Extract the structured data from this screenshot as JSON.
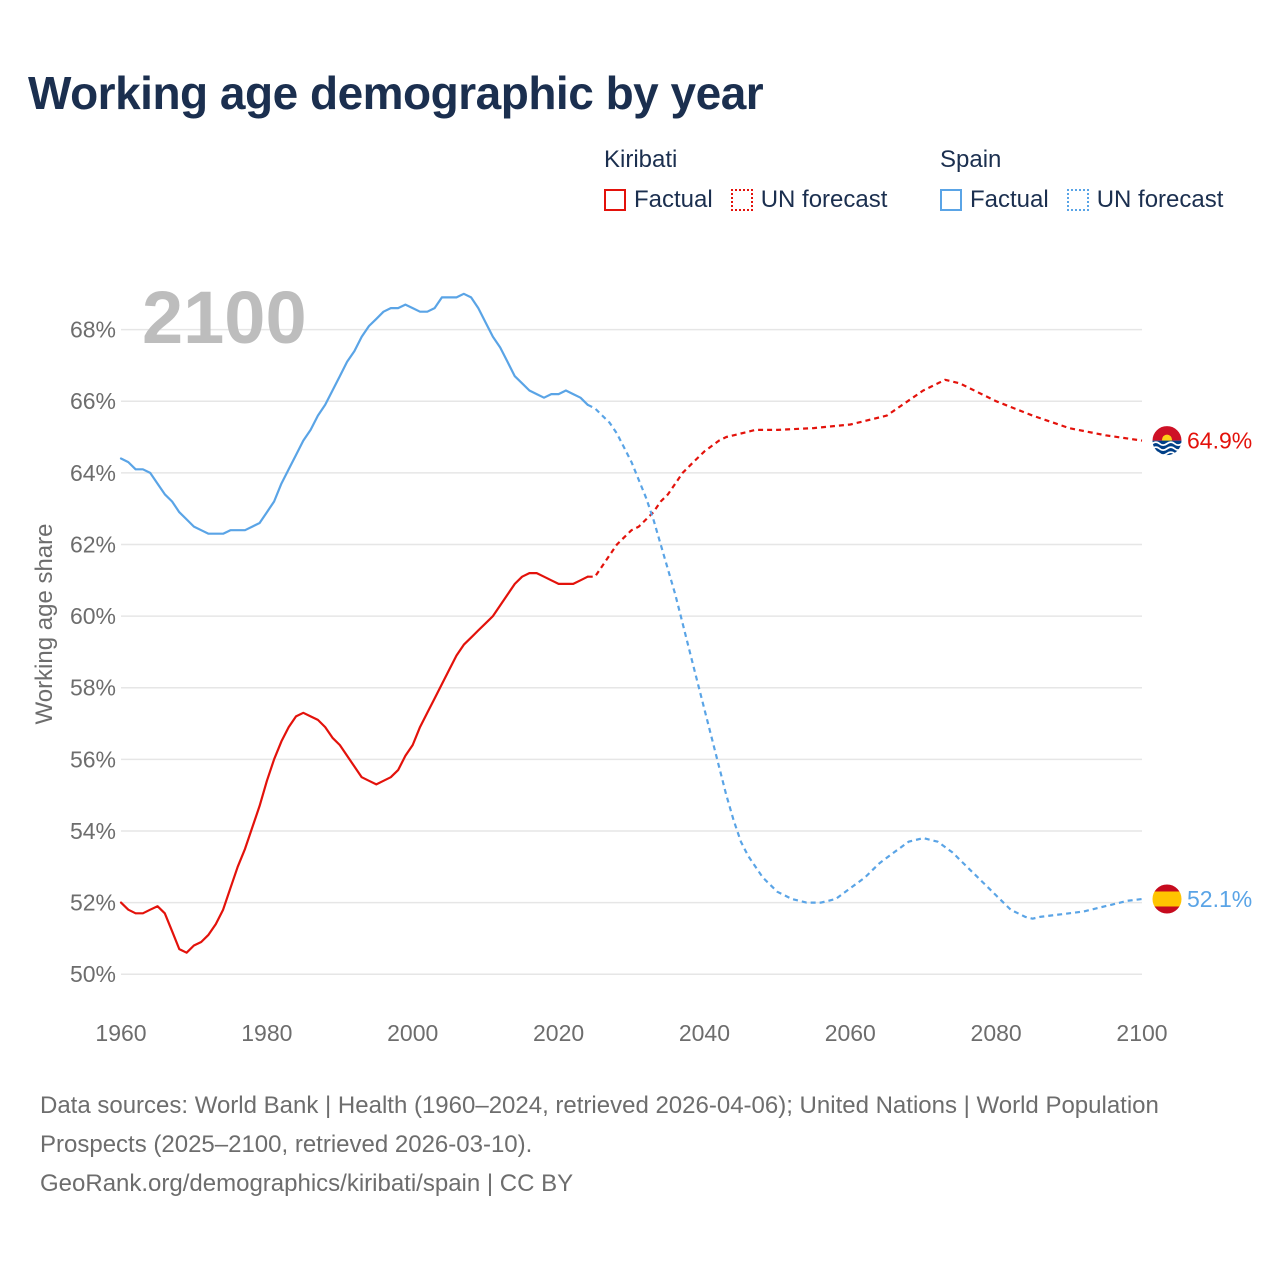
{
  "title": "Working age demographic by year",
  "legend": {
    "groups": [
      {
        "name": "Kiribati",
        "color": "#e3120b",
        "items": [
          {
            "label": "Factual",
            "style": "solid"
          },
          {
            "label": "UN forecast",
            "style": "dotted"
          }
        ]
      },
      {
        "name": "Spain",
        "color": "#5aa4e6",
        "items": [
          {
            "label": "Factual",
            "style": "solid"
          },
          {
            "label": "UN forecast",
            "style": "dotted"
          }
        ]
      }
    ]
  },
  "footer": {
    "sources": "Data sources: World Bank | Health (1960–2024, retrieved 2026-04-06); United Nations | World Population Prospects (2025–2100, retrieved 2026-03-10).",
    "url": "GeoRank.org/demographics/kiribati/spain | CC BY"
  },
  "chart_data": {
    "type": "line",
    "year_label": "2100",
    "ylabel": "Working age share",
    "xlim": [
      1960,
      2100
    ],
    "ylim": [
      49,
      70
    ],
    "y_ticks": [
      50,
      52,
      54,
      56,
      58,
      60,
      62,
      64,
      66,
      68
    ],
    "y_tick_labels": [
      "50%",
      "52%",
      "54%",
      "56%",
      "58%",
      "60%",
      "62%",
      "64%",
      "66%",
      "68%"
    ],
    "x_ticks": [
      1960,
      1980,
      2000,
      2020,
      2040,
      2060,
      2080,
      2100
    ],
    "x_tick_labels": [
      "1960",
      "1980",
      "2000",
      "2020",
      "2040",
      "2060",
      "2080",
      "2100"
    ],
    "grid": "horizontal",
    "forecast_start_year": 2024,
    "series": [
      {
        "name": "Kiribati",
        "color": "#e3120b",
        "flag": "kiribati-flag",
        "end_label": "64.9%",
        "points": [
          [
            1960,
            52.0
          ],
          [
            1961,
            51.8
          ],
          [
            1962,
            51.7
          ],
          [
            1963,
            51.7
          ],
          [
            1964,
            51.8
          ],
          [
            1965,
            51.9
          ],
          [
            1966,
            51.7
          ],
          [
            1967,
            51.2
          ],
          [
            1968,
            50.7
          ],
          [
            1969,
            50.6
          ],
          [
            1970,
            50.8
          ],
          [
            1971,
            50.9
          ],
          [
            1972,
            51.1
          ],
          [
            1973,
            51.4
          ],
          [
            1974,
            51.8
          ],
          [
            1975,
            52.4
          ],
          [
            1976,
            53.0
          ],
          [
            1977,
            53.5
          ],
          [
            1978,
            54.1
          ],
          [
            1979,
            54.7
          ],
          [
            1980,
            55.4
          ],
          [
            1981,
            56.0
          ],
          [
            1982,
            56.5
          ],
          [
            1983,
            56.9
          ],
          [
            1984,
            57.2
          ],
          [
            1985,
            57.3
          ],
          [
            1986,
            57.2
          ],
          [
            1987,
            57.1
          ],
          [
            1988,
            56.9
          ],
          [
            1989,
            56.6
          ],
          [
            1990,
            56.4
          ],
          [
            1991,
            56.1
          ],
          [
            1992,
            55.8
          ],
          [
            1993,
            55.5
          ],
          [
            1994,
            55.4
          ],
          [
            1995,
            55.3
          ],
          [
            1996,
            55.4
          ],
          [
            1997,
            55.5
          ],
          [
            1998,
            55.7
          ],
          [
            1999,
            56.1
          ],
          [
            2000,
            56.4
          ],
          [
            2001,
            56.9
          ],
          [
            2002,
            57.3
          ],
          [
            2003,
            57.7
          ],
          [
            2004,
            58.1
          ],
          [
            2005,
            58.5
          ],
          [
            2006,
            58.9
          ],
          [
            2007,
            59.2
          ],
          [
            2008,
            59.4
          ],
          [
            2009,
            59.6
          ],
          [
            2010,
            59.8
          ],
          [
            2011,
            60.0
          ],
          [
            2012,
            60.3
          ],
          [
            2013,
            60.6
          ],
          [
            2014,
            60.9
          ],
          [
            2015,
            61.1
          ],
          [
            2016,
            61.2
          ],
          [
            2017,
            61.2
          ],
          [
            2018,
            61.1
          ],
          [
            2019,
            61.0
          ],
          [
            2020,
            60.9
          ],
          [
            2021,
            60.9
          ],
          [
            2022,
            60.9
          ],
          [
            2023,
            61.0
          ],
          [
            2024,
            61.1
          ],
          [
            2025,
            61.1
          ],
          [
            2026,
            61.4
          ],
          [
            2027,
            61.7
          ],
          [
            2028,
            62.0
          ],
          [
            2029,
            62.2
          ],
          [
            2030,
            62.4
          ],
          [
            2031,
            62.5
          ],
          [
            2032,
            62.7
          ],
          [
            2033,
            62.9
          ],
          [
            2034,
            63.2
          ],
          [
            2035,
            63.4
          ],
          [
            2036,
            63.7
          ],
          [
            2037,
            64.0
          ],
          [
            2038,
            64.2
          ],
          [
            2039,
            64.4
          ],
          [
            2040,
            64.6
          ],
          [
            2041,
            64.75
          ],
          [
            2042,
            64.9
          ],
          [
            2043,
            65.0
          ],
          [
            2044,
            65.05
          ],
          [
            2045,
            65.1
          ],
          [
            2046,
            65.15
          ],
          [
            2047,
            65.2
          ],
          [
            2048,
            65.2
          ],
          [
            2050,
            65.2
          ],
          [
            2055,
            65.25
          ],
          [
            2060,
            65.35
          ],
          [
            2065,
            65.6
          ],
          [
            2070,
            66.3
          ],
          [
            2073,
            66.6
          ],
          [
            2075,
            66.5
          ],
          [
            2078,
            66.2
          ],
          [
            2080,
            66.0
          ],
          [
            2085,
            65.6
          ],
          [
            2090,
            65.25
          ],
          [
            2095,
            65.05
          ],
          [
            2100,
            64.9
          ]
        ]
      },
      {
        "name": "Spain",
        "color": "#5aa4e6",
        "flag": "spain-flag",
        "end_label": "52.1%",
        "points": [
          [
            1960,
            64.4
          ],
          [
            1961,
            64.3
          ],
          [
            1962,
            64.1
          ],
          [
            1963,
            64.1
          ],
          [
            1964,
            64.0
          ],
          [
            1965,
            63.7
          ],
          [
            1966,
            63.4
          ],
          [
            1967,
            63.2
          ],
          [
            1968,
            62.9
          ],
          [
            1969,
            62.7
          ],
          [
            1970,
            62.5
          ],
          [
            1971,
            62.4
          ],
          [
            1972,
            62.3
          ],
          [
            1973,
            62.3
          ],
          [
            1974,
            62.3
          ],
          [
            1975,
            62.4
          ],
          [
            1976,
            62.4
          ],
          [
            1977,
            62.4
          ],
          [
            1978,
            62.5
          ],
          [
            1979,
            62.6
          ],
          [
            1980,
            62.9
          ],
          [
            1981,
            63.2
          ],
          [
            1982,
            63.7
          ],
          [
            1983,
            64.1
          ],
          [
            1984,
            64.5
          ],
          [
            1985,
            64.9
          ],
          [
            1986,
            65.2
          ],
          [
            1987,
            65.6
          ],
          [
            1988,
            65.9
          ],
          [
            1989,
            66.3
          ],
          [
            1990,
            66.7
          ],
          [
            1991,
            67.1
          ],
          [
            1992,
            67.4
          ],
          [
            1993,
            67.8
          ],
          [
            1994,
            68.1
          ],
          [
            1995,
            68.3
          ],
          [
            1996,
            68.5
          ],
          [
            1997,
            68.6
          ],
          [
            1998,
            68.6
          ],
          [
            1999,
            68.7
          ],
          [
            2000,
            68.6
          ],
          [
            2001,
            68.5
          ],
          [
            2002,
            68.5
          ],
          [
            2003,
            68.6
          ],
          [
            2004,
            68.9
          ],
          [
            2005,
            68.9
          ],
          [
            2006,
            68.9
          ],
          [
            2007,
            69.0
          ],
          [
            2008,
            68.9
          ],
          [
            2009,
            68.6
          ],
          [
            2010,
            68.2
          ],
          [
            2011,
            67.8
          ],
          [
            2012,
            67.5
          ],
          [
            2013,
            67.1
          ],
          [
            2014,
            66.7
          ],
          [
            2015,
            66.5
          ],
          [
            2016,
            66.3
          ],
          [
            2017,
            66.2
          ],
          [
            2018,
            66.1
          ],
          [
            2019,
            66.2
          ],
          [
            2020,
            66.2
          ],
          [
            2021,
            66.3
          ],
          [
            2022,
            66.2
          ],
          [
            2023,
            66.1
          ],
          [
            2024,
            65.9
          ],
          [
            2025,
            65.8
          ],
          [
            2026,
            65.6
          ],
          [
            2027,
            65.4
          ],
          [
            2028,
            65.1
          ],
          [
            2029,
            64.7
          ],
          [
            2030,
            64.3
          ],
          [
            2031,
            63.8
          ],
          [
            2032,
            63.3
          ],
          [
            2033,
            62.7
          ],
          [
            2034,
            62.0
          ],
          [
            2035,
            61.3
          ],
          [
            2036,
            60.6
          ],
          [
            2037,
            59.8
          ],
          [
            2038,
            59.0
          ],
          [
            2039,
            58.2
          ],
          [
            2040,
            57.4
          ],
          [
            2041,
            56.6
          ],
          [
            2042,
            55.8
          ],
          [
            2043,
            55.0
          ],
          [
            2044,
            54.3
          ],
          [
            2045,
            53.7
          ],
          [
            2046,
            53.3
          ],
          [
            2047,
            53.0
          ],
          [
            2048,
            52.7
          ],
          [
            2049,
            52.5
          ],
          [
            2050,
            52.3
          ],
          [
            2052,
            52.1
          ],
          [
            2054,
            52.0
          ],
          [
            2056,
            52.0
          ],
          [
            2058,
            52.1
          ],
          [
            2060,
            52.4
          ],
          [
            2062,
            52.7
          ],
          [
            2064,
            53.1
          ],
          [
            2066,
            53.4
          ],
          [
            2068,
            53.7
          ],
          [
            2070,
            53.8
          ],
          [
            2072,
            53.7
          ],
          [
            2074,
            53.4
          ],
          [
            2076,
            53.0
          ],
          [
            2078,
            52.6
          ],
          [
            2080,
            52.2
          ],
          [
            2082,
            51.8
          ],
          [
            2084,
            51.6
          ],
          [
            2085,
            51.55
          ],
          [
            2086,
            51.6
          ],
          [
            2088,
            51.65
          ],
          [
            2090,
            51.7
          ],
          [
            2092,
            51.75
          ],
          [
            2094,
            51.85
          ],
          [
            2096,
            51.95
          ],
          [
            2098,
            52.05
          ],
          [
            2100,
            52.1
          ]
        ]
      }
    ]
  }
}
